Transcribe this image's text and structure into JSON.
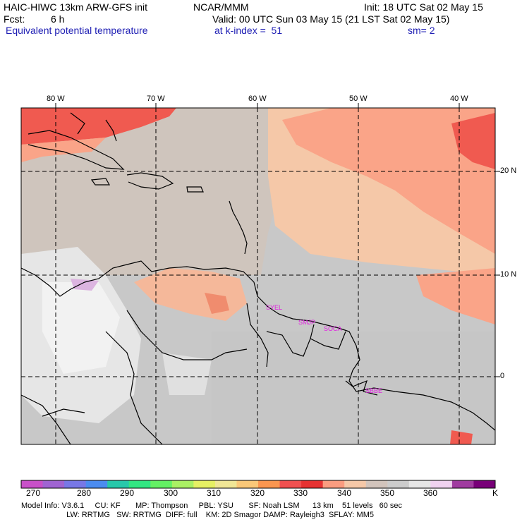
{
  "header": {
    "model": "HAIC-HIWC 13km ARW-GFS init",
    "org": "NCAR/MMM",
    "init": "Init: 18 UTC Sat 02 May 15",
    "fcst_label": "Fcst:",
    "fcst_value": "6 h",
    "valid": "Valid: 00 UTC Sun 03 May 15 (21 LST Sat 02 May 15)",
    "field": "Equivalent potential temperature",
    "kindex": "at k-index =  51",
    "sm": "sm= 2"
  },
  "map": {
    "lon_labels": [
      "80 W",
      "70 W",
      "60 W",
      "50 W",
      "40 W"
    ],
    "lat_labels": [
      "20 N",
      "10 N",
      "0"
    ],
    "stations": [
      "SYEL",
      "SMJP",
      "SOCA",
      "SBBE"
    ],
    "colors": {
      "grid": "#000000",
      "coast": "#000000",
      "station": "#e01ee0"
    }
  },
  "colorbar": {
    "labels": [
      "270",
      "280",
      "290",
      "300",
      "310",
      "320",
      "330",
      "340",
      "350",
      "360"
    ],
    "unit": "K",
    "colors": [
      "#c850c8",
      "#a064d2",
      "#7878e6",
      "#4b8cf0",
      "#28c8aa",
      "#32e682",
      "#64f064",
      "#aaf064",
      "#e6f064",
      "#f0e696",
      "#fac878",
      "#fa9650",
      "#f05050",
      "#e63232",
      "#fa9c80",
      "#f5c8a8",
      "#d2c4bc",
      "#cccccc",
      "#e6e6e6",
      "#f0d2f0",
      "#a03ca0",
      "#780078"
    ]
  },
  "footer": {
    "line1": "Model Info: V3.6.1     CU: KF       MP: Thompson     PBL: YSU       SF: Noah LSM      13 km    51 levels   60 sec",
    "line2": "                     LW: RRTMG   SW: RRTMG  DIFF: full    KM: 2D Smagor DAMP: Rayleigh3  SFLAY: MM5"
  }
}
